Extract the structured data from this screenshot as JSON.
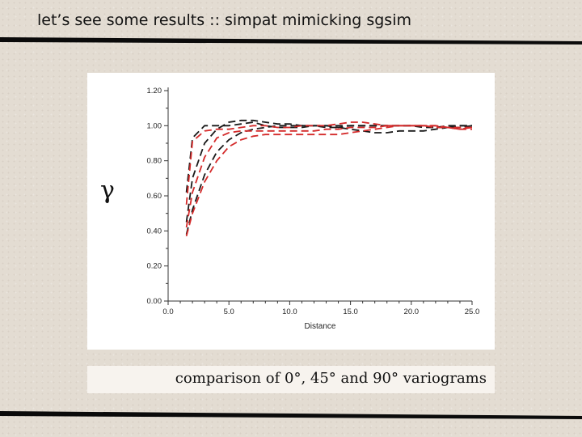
{
  "slide": {
    "title": "let’s see some results :: simpat mimicking sgsim",
    "caption": "comparison of 0°, 45° and 90° variograms"
  },
  "colors": {
    "black_series": "#1a1a1a",
    "red_series": "#d42a2a",
    "background": "#e3dcd2",
    "panel": "#ffffff",
    "rule": "#0a0a0a"
  },
  "chart_data": {
    "type": "line",
    "y_symbol": "γ",
    "xlabel": "Distance",
    "ylabel": "",
    "xlim": [
      0,
      25
    ],
    "ylim": [
      0,
      1.2
    ],
    "x_ticks": [
      "0.0",
      "5.0",
      "10.0",
      "15.0",
      "20.0",
      "25.0"
    ],
    "x_tick_values": [
      0,
      5,
      10,
      15,
      20,
      25
    ],
    "y_ticks": [
      "0.00",
      "0.20",
      "0.40",
      "0.60",
      "0.80",
      "1.00",
      "1.20"
    ],
    "y_tick_values": [
      0,
      0.2,
      0.4,
      0.6,
      0.8,
      1.0,
      1.2
    ],
    "grid": false,
    "line_style": "dashed",
    "series": [
      {
        "color": "black",
        "x": [
          1.5,
          2,
          3,
          4,
          5,
          6,
          7,
          8,
          9,
          10,
          11,
          12,
          13,
          14,
          15,
          16,
          17,
          18,
          19,
          20,
          21,
          22,
          23,
          24,
          25
        ],
        "y": [
          0.62,
          0.93,
          1.0,
          1.0,
          1.0,
          1.01,
          1.02,
          1.0,
          0.99,
          0.99,
          0.99,
          1.0,
          1.0,
          1.0,
          1.0,
          1.0,
          1.0,
          1.0,
          1.0,
          1.0,
          1.0,
          0.99,
          1.0,
          1.0,
          1.0
        ]
      },
      {
        "color": "black",
        "x": [
          1.5,
          2,
          3,
          4,
          5,
          6,
          7,
          8,
          9,
          10,
          11,
          12,
          13,
          14,
          15,
          16,
          17,
          18,
          19,
          20,
          21,
          22,
          23,
          24,
          25
        ],
        "y": [
          0.45,
          0.7,
          0.9,
          0.98,
          1.02,
          1.03,
          1.03,
          1.02,
          1.01,
          1.01,
          1.0,
          1.0,
          0.99,
          0.99,
          0.98,
          0.97,
          0.96,
          0.96,
          0.97,
          0.97,
          0.97,
          0.98,
          0.99,
          0.99,
          1.0
        ]
      },
      {
        "color": "black",
        "x": [
          1.5,
          2,
          3,
          4,
          5,
          6,
          7,
          8,
          9,
          10,
          11,
          12,
          13,
          14,
          15,
          16,
          17,
          18,
          19,
          20,
          21,
          22,
          23,
          24,
          25
        ],
        "y": [
          0.38,
          0.52,
          0.72,
          0.85,
          0.92,
          0.96,
          0.98,
          0.99,
          1.0,
          1.0,
          1.0,
          1.0,
          1.0,
          0.99,
          1.0,
          1.0,
          1.0,
          1.0,
          1.0,
          1.0,
          0.99,
          0.99,
          0.99,
          1.0,
          1.0
        ]
      },
      {
        "color": "red",
        "x": [
          1.5,
          2,
          3,
          4,
          5,
          6,
          7,
          8,
          9,
          10,
          11,
          12,
          13,
          14,
          15,
          16,
          17,
          18,
          19,
          20,
          21,
          22,
          23,
          24,
          25
        ],
        "y": [
          0.55,
          0.91,
          0.97,
          0.98,
          0.98,
          0.99,
          1.0,
          1.0,
          0.99,
          0.99,
          1.0,
          1.0,
          1.0,
          1.01,
          1.02,
          1.02,
          1.01,
          1.0,
          1.0,
          1.0,
          1.0,
          1.0,
          0.99,
          0.98,
          0.99
        ]
      },
      {
        "color": "red",
        "x": [
          1.5,
          2,
          3,
          4,
          5,
          6,
          7,
          8,
          9,
          10,
          11,
          12,
          13,
          14,
          15,
          16,
          17,
          18,
          19,
          20,
          21,
          22,
          23,
          24,
          25
        ],
        "y": [
          0.42,
          0.62,
          0.82,
          0.93,
          0.96,
          0.97,
          0.97,
          0.97,
          0.97,
          0.97,
          0.97,
          0.97,
          0.98,
          0.98,
          0.99,
          0.99,
          0.99,
          1.0,
          1.0,
          1.0,
          1.0,
          0.99,
          0.99,
          0.98,
          0.98
        ]
      },
      {
        "color": "red",
        "x": [
          1.5,
          2,
          3,
          4,
          5,
          6,
          7,
          8,
          9,
          10,
          11,
          12,
          13,
          14,
          15,
          16,
          17,
          18,
          19,
          20,
          21,
          22,
          23,
          24,
          25
        ],
        "y": [
          0.37,
          0.5,
          0.68,
          0.8,
          0.88,
          0.92,
          0.94,
          0.95,
          0.95,
          0.95,
          0.95,
          0.95,
          0.95,
          0.95,
          0.96,
          0.97,
          0.98,
          0.99,
          1.0,
          1.0,
          1.0,
          1.0,
          0.99,
          0.99,
          0.99
        ]
      }
    ]
  }
}
